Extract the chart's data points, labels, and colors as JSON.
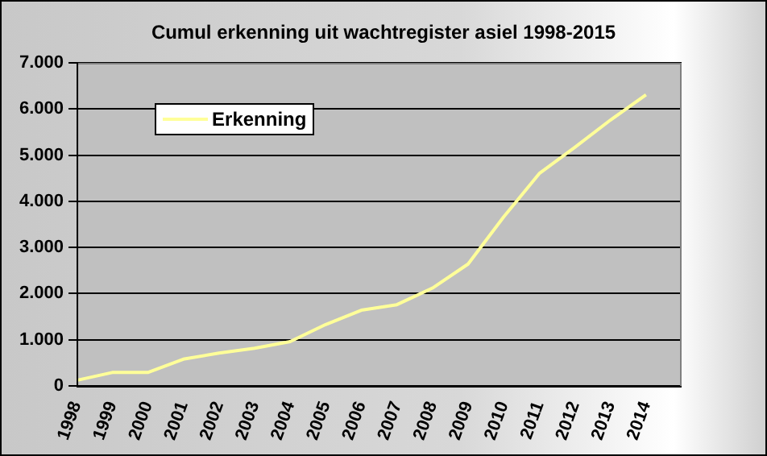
{
  "chart_data": {
    "type": "line",
    "title": "Cumul erkenning uit wachtregister asiel 1998-2015",
    "categories": [
      "1998",
      "1999",
      "2000",
      "2001",
      "2002",
      "2003",
      "2004",
      "2005",
      "2006",
      "2007",
      "2008",
      "2009",
      "2010",
      "2011",
      "2012",
      "2013",
      "2014",
      null
    ],
    "series": [
      {
        "name": "Erkenning",
        "color": "#ffff99",
        "values": [
          120,
          290,
          290,
          580,
          710,
          815,
          960,
          1330,
          1640,
          1760,
          2120,
          2640,
          3660,
          4600,
          5170,
          5760,
          6310,
          null
        ]
      }
    ],
    "ylim": [
      0,
      7000
    ],
    "yticks": [
      0,
      {
        "value": 1000,
        "label": "1.000"
      },
      {
        "value": 2000,
        "label": "2.000"
      },
      {
        "value": 3000,
        "label": "3.000"
      },
      {
        "value": 4000,
        "label": "4.000"
      },
      {
        "value": 5000,
        "label": "5.000"
      },
      {
        "value": 6000,
        "label": "6.000"
      },
      {
        "value": 7000,
        "label": "7.000"
      }
    ],
    "grid": "y",
    "legend": "top left",
    "marker": "none",
    "line_style": "solid"
  }
}
